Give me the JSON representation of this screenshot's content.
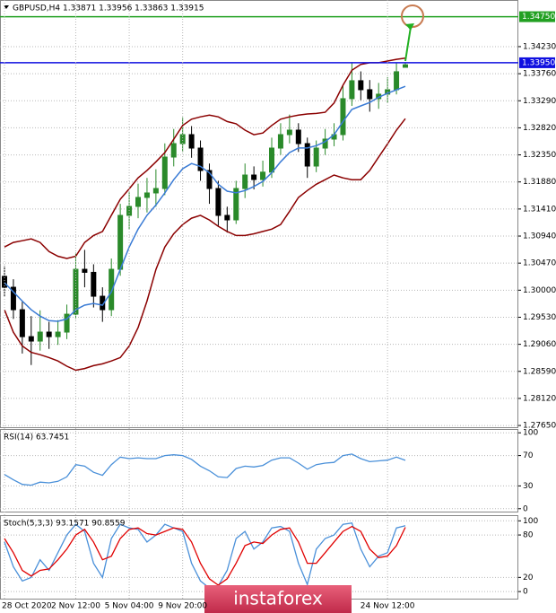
{
  "chart_data": [
    {
      "type": "candlestick",
      "title": "GBPUSD,H4 1.33871 1.33956 1.33863 1.33915",
      "categories": [
        "28 Oct 2020",
        null,
        null,
        null,
        null,
        null,
        null,
        null,
        "2 Nov 12:00",
        null,
        null,
        null,
        null,
        null,
        "5 Nov 04:00",
        null,
        null,
        null,
        null,
        null,
        "9 Nov 20:00",
        null,
        null,
        null,
        null,
        null,
        null,
        null,
        null,
        null,
        null,
        null,
        null,
        null,
        null,
        null,
        null,
        null,
        null,
        null,
        null,
        null,
        null,
        "24 Nov 12:00",
        null,
        null
      ],
      "open": [
        1.3024,
        1.30051,
        1.29661,
        1.29193,
        1.29116,
        1.29272,
        1.29193,
        1.29272,
        1.29583,
        1.30363,
        1.3031,
        1.29895,
        1.29661,
        1.30363,
        1.31299,
        1.31455,
        1.31611,
        1.31689,
        1.31766,
        1.32312,
        1.32546,
        1.32702,
        1.32468,
        1.32078,
        1.31766,
        1.31299,
        1.31221,
        1.31766,
        1.32,
        1.31922,
        1.3205,
        1.32468,
        1.32702,
        1.3278,
        1.32546,
        1.32156,
        1.32468,
        1.32624,
        1.32702,
        1.33326,
        1.33638,
        1.33482,
        1.33326,
        1.33404,
        1.33482,
        1.33871
      ],
      "high": [
        1.3042,
        1.3019,
        1.298,
        1.2955,
        1.2965,
        1.2945,
        1.2948,
        1.2975,
        1.3065,
        1.307,
        1.3045,
        1.3005,
        1.3055,
        1.315,
        1.317,
        1.3185,
        1.3195,
        1.321,
        1.3255,
        1.328,
        1.33,
        1.3285,
        1.326,
        1.322,
        1.319,
        1.3145,
        1.319,
        1.322,
        1.3215,
        1.3225,
        1.3265,
        1.329,
        1.3305,
        1.329,
        1.3265,
        1.326,
        1.328,
        1.329,
        1.3355,
        1.3396,
        1.338,
        1.3365,
        1.336,
        1.337,
        1.3395,
        1.33956
      ],
      "low": [
        1.2988,
        1.295,
        1.289,
        1.287,
        1.2895,
        1.2898,
        1.2905,
        1.2915,
        1.295,
        1.3005,
        1.297,
        1.2945,
        1.2955,
        1.3025,
        1.3105,
        1.3125,
        1.3135,
        1.3145,
        1.3165,
        1.3215,
        1.324,
        1.323,
        1.319,
        1.315,
        1.311,
        1.31,
        1.3115,
        1.316,
        1.3175,
        1.318,
        1.3195,
        1.3235,
        1.3255,
        1.324,
        1.3195,
        1.3205,
        1.3235,
        1.325,
        1.326,
        1.332,
        1.333,
        1.331,
        1.3315,
        1.3325,
        1.334,
        1.33863
      ],
      "close": [
        1.30051,
        1.29661,
        1.29193,
        1.29116,
        1.29272,
        1.29193,
        1.29272,
        1.29583,
        1.30363,
        1.3031,
        1.29895,
        1.29661,
        1.30363,
        1.31299,
        1.31455,
        1.31611,
        1.31689,
        1.31766,
        1.32312,
        1.32546,
        1.32702,
        1.32468,
        1.32078,
        1.31766,
        1.31299,
        1.31221,
        1.31766,
        1.32,
        1.31922,
        1.3205,
        1.32468,
        1.32702,
        1.3278,
        1.32546,
        1.32156,
        1.32468,
        1.32624,
        1.32702,
        1.33326,
        1.33638,
        1.33482,
        1.33326,
        1.33404,
        1.33482,
        1.33794,
        1.33915
      ],
      "up_color": "#2a8a2a",
      "down_color": "#000000",
      "series": [
        {
          "color": "#8b0000",
          "values": [
            1.3075,
            1.3083,
            1.3086,
            1.3089,
            1.3083,
            1.3067,
            1.3059,
            1.3055,
            1.3059,
            1.3083,
            1.3095,
            1.3102,
            1.313,
            1.3158,
            1.3176,
            1.3195,
            1.3208,
            1.3223,
            1.3239,
            1.3262,
            1.3286,
            1.3297,
            1.3301,
            1.3304,
            1.3301,
            1.3293,
            1.3289,
            1.3278,
            1.327,
            1.3273,
            1.3286,
            1.3297,
            1.3301,
            1.3304,
            1.3306,
            1.3307,
            1.3309,
            1.3325,
            1.3356,
            1.3382,
            1.3392,
            1.3395,
            1.3395,
            1.3398,
            1.3401,
            1.3403
          ]
        },
        {
          "color": "#8b0000",
          "values": [
            1.2966,
            1.2927,
            1.2903,
            1.2892,
            1.2888,
            1.2883,
            1.2877,
            1.2868,
            1.2861,
            1.2864,
            1.2869,
            1.2872,
            1.2877,
            1.2883,
            1.2903,
            1.2935,
            1.2981,
            1.3036,
            1.3075,
            1.3098,
            1.3114,
            1.3125,
            1.313,
            1.3122,
            1.3111,
            1.3102,
            1.3095,
            1.3095,
            1.3098,
            1.3102,
            1.3106,
            1.3114,
            1.3137,
            1.3161,
            1.3173,
            1.3184,
            1.3192,
            1.32,
            1.3195,
            1.3192,
            1.3192,
            1.3208,
            1.3231,
            1.3254,
            1.3278,
            1.3298
          ]
        },
        {
          "color": "#3a7bd5",
          "values": [
            1.3013,
            1.2997,
            1.2981,
            1.2966,
            1.2955,
            1.2947,
            1.2946,
            1.295,
            1.2966,
            1.2974,
            1.2977,
            1.2974,
            1.2997,
            1.3036,
            1.3075,
            1.3106,
            1.313,
            1.3148,
            1.3169,
            1.3192,
            1.3211,
            1.322,
            1.3215,
            1.3204,
            1.3184,
            1.3172,
            1.3169,
            1.3173,
            1.318,
            1.3189,
            1.3204,
            1.3223,
            1.3239,
            1.3247,
            1.3247,
            1.3251,
            1.3258,
            1.327,
            1.3293,
            1.3314,
            1.332,
            1.3326,
            1.3335,
            1.3342,
            1.3348,
            1.3354
          ]
        }
      ],
      "hlines": [
        {
          "value": 1.3475,
          "label": "1.34750",
          "color": "#22a022"
        },
        {
          "value": 1.3395,
          "label": "1.33950",
          "color": "#1010e0"
        }
      ],
      "ylim": [
        1.2762,
        1.3504
      ],
      "yticks": [
        {
          "value": 1.3423,
          "label": "1.34230"
        },
        {
          "value": 1.3376,
          "label": "1.33760"
        },
        {
          "value": 1.3329,
          "label": "1.33290"
        },
        {
          "value": 1.3282,
          "label": "1.32820"
        },
        {
          "value": 1.3235,
          "label": "1.32350"
        },
        {
          "value": 1.3188,
          "label": "1.31880"
        },
        {
          "value": 1.3141,
          "label": "1.31410"
        },
        {
          "value": 1.3094,
          "label": "1.30940"
        },
        {
          "value": 1.3047,
          "label": "1.30470"
        },
        {
          "value": 1.3,
          "label": "1.30000"
        },
        {
          "value": 1.2953,
          "label": "1.29530"
        },
        {
          "value": 1.2906,
          "label": "1.29060"
        },
        {
          "value": 1.2859,
          "label": "1.28590"
        },
        {
          "value": 1.2812,
          "label": "1.28120"
        },
        {
          "value": 1.2765,
          "label": "1.27650"
        }
      ],
      "grid": true
    },
    {
      "type": "line",
      "title": "RSI(14) 63.7451",
      "series": [
        {
          "color": "#4a90d9",
          "values": [
            45,
            38,
            32,
            31,
            35,
            34,
            36,
            42,
            58,
            56,
            48,
            44,
            58,
            68,
            66,
            67,
            66,
            66,
            70,
            71,
            70,
            65,
            56,
            50,
            42,
            41,
            53,
            56,
            55,
            57,
            64,
            67,
            67,
            60,
            52,
            58,
            60,
            61,
            70,
            72,
            66,
            62,
            63,
            64,
            68,
            63.7451
          ]
        }
      ],
      "ylim": [
        -5,
        105
      ],
      "yticks": [
        100,
        70,
        30,
        0
      ],
      "grid": true
    },
    {
      "type": "line",
      "title": "Stoch(5,3,3) 93.1571 90.8559",
      "series": [
        {
          "color": "#4a90d9",
          "values": [
            70,
            35,
            15,
            20,
            45,
            30,
            55,
            80,
            95,
            85,
            40,
            20,
            75,
            95,
            90,
            88,
            70,
            80,
            95,
            90,
            85,
            40,
            15,
            5,
            8,
            30,
            75,
            85,
            60,
            70,
            90,
            92,
            85,
            40,
            10,
            60,
            75,
            80,
            95,
            97,
            60,
            35,
            50,
            55,
            90,
            93.1571
          ]
        },
        {
          "color": "#e00000",
          "values": [
            75,
            55,
            30,
            22,
            30,
            32,
            45,
            60,
            80,
            88,
            70,
            45,
            50,
            75,
            88,
            90,
            82,
            80,
            85,
            90,
            88,
            70,
            40,
            18,
            9,
            18,
            40,
            65,
            70,
            68,
            80,
            88,
            90,
            70,
            40,
            40,
            55,
            70,
            85,
            92,
            85,
            60,
            48,
            50,
            65,
            90.8559
          ]
        }
      ],
      "ylim": [
        -10,
        108
      ],
      "yticks": [
        100,
        80,
        20,
        0
      ],
      "grid": true
    }
  ],
  "watermark": "instaforex"
}
